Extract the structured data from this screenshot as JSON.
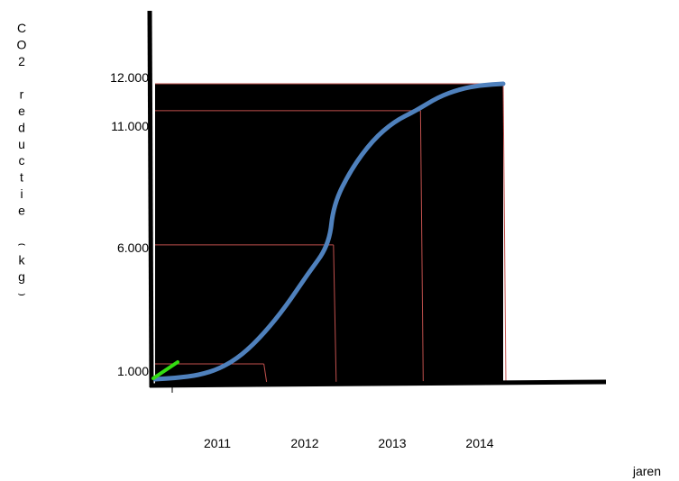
{
  "chart_data": {
    "type": "line",
    "title": "",
    "xlabel": "jaren",
    "ylabel": "CO2 reductie (kg)",
    "y_tick_labels": [
      "1.000",
      "6.000",
      "11.000",
      "12.000"
    ],
    "y_ticks": [
      1000,
      6000,
      11000,
      12000
    ],
    "x_tick_labels": [
      "2011",
      "2012",
      "2013",
      "2014"
    ],
    "x_ticks": [
      2011,
      2012,
      2013,
      2014
    ],
    "xlim": [
      2010,
      2014.9
    ],
    "ylim": [
      1000,
      12000
    ],
    "series": [
      {
        "values": [
          [
            2010,
            1000
          ],
          [
            2010.25,
            1050
          ],
          [
            2010.5,
            1150
          ],
          [
            2010.75,
            1400
          ],
          [
            2011,
            1900
          ],
          [
            2011.25,
            2700
          ],
          [
            2011.5,
            3700
          ],
          [
            2011.75,
            4900
          ],
          [
            2012,
            6000
          ],
          [
            2012.05,
            7500
          ],
          [
            2012.25,
            8800
          ],
          [
            2012.5,
            9900
          ],
          [
            2012.75,
            10600
          ],
          [
            2013,
            11000
          ],
          [
            2013.25,
            11500
          ],
          [
            2013.5,
            11800
          ],
          [
            2013.75,
            11950
          ],
          [
            2014,
            12000
          ]
        ],
        "color": "#4f81bd"
      }
    ],
    "start_marker_color": "#33dd11",
    "guide_line_color": "#c0504d",
    "plot_background": "#000000",
    "grid": false,
    "legend": "none"
  }
}
